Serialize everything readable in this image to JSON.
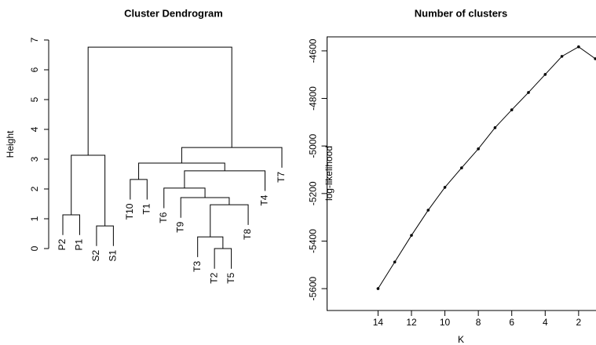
{
  "chart_data": [
    {
      "type": "dendrogram",
      "title": "Cluster Dendrogram",
      "ylabel": "Height",
      "labels": [
        "P2",
        "P1",
        "S2",
        "S1",
        "T10",
        "T1",
        "T6",
        "T9",
        "T3",
        "T2",
        "T5",
        "T8",
        "T4",
        "T7"
      ],
      "merge": [
        [
          -10,
          -11
        ],
        [
          -9,
          1
        ],
        [
          -3,
          -4
        ],
        [
          -1,
          -2
        ],
        [
          2,
          -12
        ],
        [
          -8,
          5
        ],
        [
          -7,
          6
        ],
        [
          -5,
          -6
        ],
        [
          7,
          -13
        ],
        [
          8,
          9
        ],
        [
          4,
          3
        ],
        [
          10,
          -14
        ],
        [
          11,
          12
        ]
      ],
      "height": [
        0,
        0.39,
        0.76,
        1.13,
        1.47,
        1.71,
        2.03,
        2.32,
        2.61,
        2.87,
        3.13,
        3.39,
        6.76
      ],
      "ylim": [
        0,
        7
      ],
      "yticks": [
        0,
        1,
        2,
        3,
        4,
        5,
        6,
        7
      ],
      "color": "#000000"
    },
    {
      "type": "line",
      "title": "Number of clusters",
      "xlabel": "K",
      "ylabel": "log-likelihood",
      "x": [
        14,
        13,
        12,
        11,
        10,
        9,
        8,
        7,
        6,
        5,
        4,
        3,
        2,
        1
      ],
      "values": [
        -5600,
        -5488,
        -5376,
        -5270,
        -5174,
        -5092,
        -5012,
        -4923,
        -4848,
        -4775,
        -4699,
        -4623,
        -4583,
        -4633
      ],
      "xlim": [
        17.05,
        0.96
      ],
      "xticks": [
        14,
        12,
        10,
        8,
        6,
        4,
        2
      ],
      "ylim": [
        -5692,
        -4541
      ],
      "yticks": [
        -5600,
        -5400,
        -5200,
        -5000,
        -4800,
        -4600
      ],
      "color": "#000000"
    }
  ]
}
